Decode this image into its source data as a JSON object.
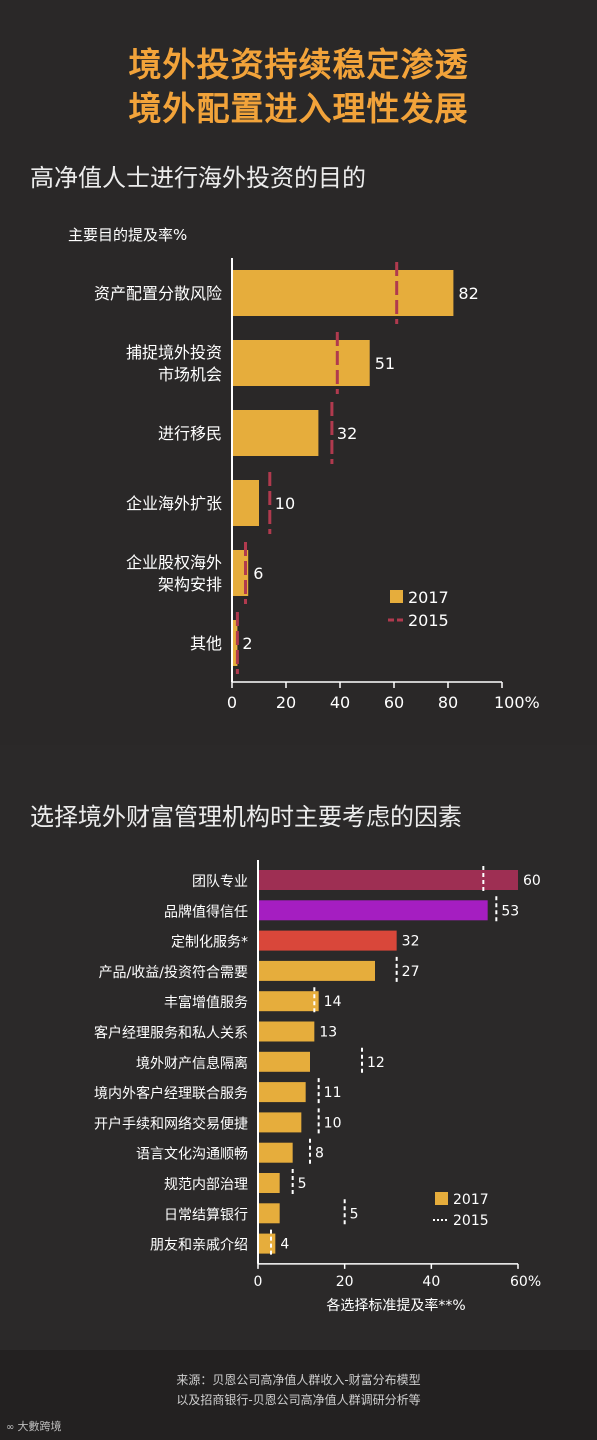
{
  "headline": {
    "line1": "境外投资持续稳定渗透",
    "line2": "境外配置进入理性发展"
  },
  "footer": {
    "source_line1": "来源：贝恩公司高净值人群收入-财富分布模型",
    "source_line2": "以及招商银行-贝恩公司高净值人群调研分析等",
    "brand": "大數跨境"
  },
  "colors": {
    "accent": "#f2a33a",
    "bar_2017": "#e6ad3c",
    "marker_2015_chart1": "#b03a4e",
    "bar_team": "#9e2f53",
    "bar_brand": "#a51ec1",
    "bar_custom": "#d9473a"
  },
  "chart_data": [
    {
      "type": "bar",
      "orientation": "horizontal",
      "title": "高净值人士进行海外投资的目的",
      "ylabel": "主要目的提及率%",
      "xlabel": "",
      "categories": [
        "资产配置分散风险",
        "捕捉境外投资\n市场机会",
        "进行移民",
        "企业海外扩张",
        "企业股权海外\n架构安排",
        "其他"
      ],
      "series": [
        {
          "name": "2017",
          "values": [
            82,
            51,
            32,
            10,
            6,
            2
          ]
        },
        {
          "name": "2015",
          "values": [
            61,
            39,
            37,
            14,
            5,
            2
          ]
        }
      ],
      "data_labels": [
        "82",
        "51",
        "32",
        "10",
        "6",
        "2"
      ],
      "xlim": [
        0,
        100
      ],
      "xticks": [
        "0",
        "20",
        "40",
        "60",
        "80",
        "100%"
      ],
      "legend": {
        "placement": "bottom-right",
        "entries": [
          "2017",
          "2015"
        ]
      }
    },
    {
      "type": "bar",
      "orientation": "horizontal",
      "title": "选择境外财富管理机构时主要考虑的因素",
      "xlabel": "各选择标准提及率**%",
      "categories": [
        "团队专业",
        "品牌值得信任",
        "定制化服务*",
        "产品/收益/投资符合需要",
        "丰富增值服务",
        "客户经理服务和私人关系",
        "境外财产信息隔离",
        "境内外客户经理联合服务",
        "开户手续和网络交易便捷",
        "语言文化沟通顺畅",
        "规范内部治理",
        "日常结算银行",
        "朋友和亲戚介绍"
      ],
      "series": [
        {
          "name": "2017",
          "values": [
            60,
            53,
            32,
            27,
            14,
            13,
            12,
            11,
            10,
            8,
            5,
            5,
            4
          ]
        },
        {
          "name": "2015",
          "values": [
            52,
            55,
            null,
            32,
            13,
            null,
            24,
            14,
            14,
            12,
            8,
            20,
            3
          ]
        }
      ],
      "data_labels": [
        "60",
        "53",
        "32",
        "27",
        "14",
        "13",
        "12",
        "11",
        "10",
        "8",
        "5",
        "5",
        "4"
      ],
      "xlim": [
        0,
        60
      ],
      "xticks": [
        "0",
        "20",
        "40",
        "60%"
      ],
      "legend": {
        "placement": "bottom-right",
        "entries": [
          "2017",
          "2015"
        ]
      }
    }
  ]
}
